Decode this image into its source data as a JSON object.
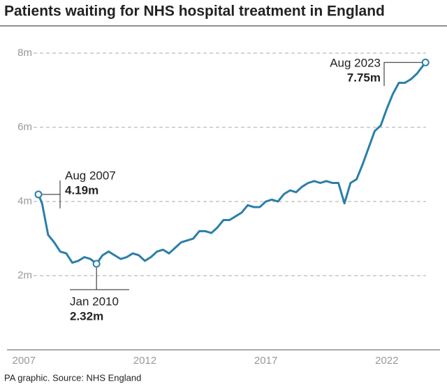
{
  "chart_data": {
    "type": "line",
    "title": "Patients waiting for NHS hospital treatment in England",
    "source": "PA graphic. Source: NHS England",
    "x": [
      2007.6,
      2007.75,
      2008.0,
      2008.25,
      2008.5,
      2008.75,
      2009.0,
      2009.25,
      2009.5,
      2009.75,
      2010.0,
      2010.25,
      2010.5,
      2010.75,
      2011.0,
      2011.25,
      2011.5,
      2011.75,
      2012.0,
      2012.25,
      2012.5,
      2012.75,
      2013.0,
      2013.25,
      2013.5,
      2013.75,
      2014.0,
      2014.25,
      2014.5,
      2014.75,
      2015.0,
      2015.25,
      2015.5,
      2015.75,
      2016.0,
      2016.25,
      2016.5,
      2016.75,
      2017.0,
      2017.25,
      2017.5,
      2017.75,
      2018.0,
      2018.25,
      2018.5,
      2018.75,
      2019.0,
      2019.25,
      2019.5,
      2019.75,
      2020.0,
      2020.25,
      2020.5,
      2020.75,
      2021.0,
      2021.25,
      2021.5,
      2021.75,
      2022.0,
      2022.25,
      2022.5,
      2022.75,
      2023.0,
      2023.25,
      2023.6
    ],
    "series": [
      {
        "name": "Patients waiting",
        "color": "#2b7fa8",
        "values": [
          4.19,
          3.95,
          3.1,
          2.9,
          2.65,
          2.6,
          2.35,
          2.4,
          2.5,
          2.45,
          2.32,
          2.55,
          2.65,
          2.55,
          2.45,
          2.5,
          2.6,
          2.55,
          2.4,
          2.5,
          2.65,
          2.7,
          2.6,
          2.75,
          2.9,
          2.95,
          3.0,
          3.2,
          3.2,
          3.15,
          3.3,
          3.5,
          3.5,
          3.6,
          3.7,
          3.9,
          3.85,
          3.85,
          4.0,
          4.05,
          4.0,
          4.2,
          4.3,
          4.25,
          4.4,
          4.5,
          4.55,
          4.5,
          4.55,
          4.5,
          4.5,
          3.95,
          4.5,
          4.6,
          5.0,
          5.45,
          5.9,
          6.05,
          6.5,
          6.9,
          7.2,
          7.2,
          7.3,
          7.45,
          7.75
        ]
      }
    ],
    "xlim": [
      2006.3,
      2024.2
    ],
    "xticks": [
      2007,
      2012,
      2017,
      2022
    ],
    "ylim": [
      0,
      8.3
    ],
    "yticks": [
      {
        "value": 2,
        "label": "2m"
      },
      {
        "value": 4,
        "label": "4m"
      },
      {
        "value": 6,
        "label": "6m"
      },
      {
        "value": 8,
        "label": "8m"
      }
    ],
    "grid": true,
    "annotations": [
      {
        "index": 0,
        "text": "Aug 2007",
        "value_label": "4.19m"
      },
      {
        "index": 10,
        "text": "Jan 2010",
        "value_label": "2.32m"
      },
      {
        "index": 64,
        "text": "Aug 2023",
        "value_label": "7.75m"
      }
    ]
  }
}
